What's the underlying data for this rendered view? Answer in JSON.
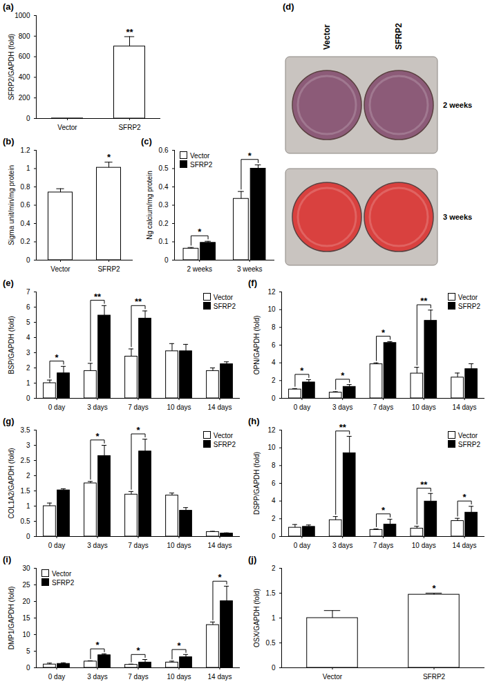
{
  "chart_data": [
    {
      "type": "bar",
      "title": "(a)",
      "y_label": "SFRP2/GAPDH (fold)",
      "categories": [
        "Vector",
        "SFRP2"
      ],
      "values": [
        1,
        700
      ],
      "errors": [
        0,
        95
      ],
      "colors": [
        "#ffffff",
        "#ffffff"
      ],
      "significance": [
        null,
        "**"
      ],
      "ylim": [
        0,
        1000
      ],
      "yticks": [
        0,
        200,
        400,
        600,
        800,
        1000
      ]
    },
    {
      "type": "bar",
      "title": "(b)",
      "y_label": "Sigma unit/min/mg protein",
      "categories": [
        "Vector",
        "SFRP2"
      ],
      "values": [
        0.74,
        1.01
      ],
      "errors": [
        0.04,
        0.06
      ],
      "colors": [
        "#ffffff",
        "#ffffff"
      ],
      "significance": [
        null,
        "*"
      ],
      "ylim": [
        0,
        1.2
      ],
      "yticks": [
        0,
        0.2,
        0.4,
        0.6,
        0.8,
        1,
        1.2
      ]
    },
    {
      "type": "bar",
      "title": "(c)",
      "y_label": "Ng calcium/mg protein",
      "categories": [
        "2 weeks",
        "3 weeks"
      ],
      "legend": "top-left",
      "series": [
        {
          "name": "Vector",
          "color": "#ffffff",
          "values": [
            0.063,
            0.335
          ],
          "errors": [
            0.006,
            0.04
          ]
        },
        {
          "name": "SFRP2",
          "color": "#000000",
          "values": [
            0.095,
            0.5
          ],
          "errors": [
            0.008,
            0.02
          ]
        }
      ],
      "significance": [
        "*",
        "*"
      ],
      "ylim": [
        0,
        0.6
      ],
      "yticks": [
        0,
        0.1,
        0.2,
        0.3,
        0.4,
        0.5,
        0.6
      ]
    },
    {
      "type": "image",
      "title": "(d)",
      "columns": [
        "Vector",
        "SFRP2"
      ],
      "rows": [
        "2 weeks",
        "3 weeks"
      ],
      "colors": [
        "#8c5b78",
        "#d9413f"
      ]
    },
    {
      "type": "bar",
      "title": "(e)",
      "y_label": "BSP/GAPDH (fold)",
      "categories": [
        "0 day",
        "3 days",
        "7 days",
        "10 days",
        "14 days"
      ],
      "legend": "top-right",
      "series": [
        {
          "name": "Vector",
          "color": "#ffffff",
          "values": [
            1.0,
            1.8,
            2.75,
            3.1,
            1.8
          ],
          "errors": [
            0.2,
            0.5,
            0.5,
            0.5,
            0.2
          ]
        },
        {
          "name": "SFRP2",
          "color": "#000000",
          "values": [
            1.65,
            5.45,
            5.25,
            3.1,
            2.25
          ],
          "errors": [
            0.45,
            0.65,
            0.5,
            0.45,
            0.15
          ]
        }
      ],
      "significance": [
        "*",
        "**",
        "**",
        null,
        null
      ],
      "ylim": [
        0,
        7
      ],
      "yticks": [
        0,
        1,
        2,
        3,
        4,
        5,
        6,
        7
      ]
    },
    {
      "type": "bar",
      "title": "(f)",
      "y_label": "OPN/GAPDH (fold)",
      "categories": [
        "0 day",
        "3 days",
        "7 days",
        "10 days",
        "14 days"
      ],
      "legend": "top-right",
      "series": [
        {
          "name": "Vector",
          "color": "#ffffff",
          "values": [
            1.0,
            0.65,
            3.85,
            2.8,
            2.35
          ],
          "errors": [
            0.1,
            0.1,
            0.15,
            0.7,
            0.5
          ]
        },
        {
          "name": "SFRP2",
          "color": "#000000",
          "values": [
            1.8,
            1.3,
            6.25,
            8.75,
            3.3
          ],
          "errors": [
            0.3,
            0.25,
            0.15,
            1.2,
            0.6
          ]
        }
      ],
      "significance": [
        "*",
        "*",
        "*",
        "**",
        null
      ],
      "ylim": [
        0,
        12
      ],
      "yticks": [
        0,
        2,
        4,
        6,
        8,
        10,
        12
      ]
    },
    {
      "type": "bar",
      "title": "(g)",
      "y_label": "COL1A2/GAPDH (fold)",
      "categories": [
        "0 day",
        "3 days",
        "7 days",
        "10 days",
        "14 days"
      ],
      "legend": "top-right",
      "series": [
        {
          "name": "Vector",
          "color": "#ffffff",
          "values": [
            1.0,
            1.75,
            1.38,
            1.35,
            0.15
          ],
          "errors": [
            0.1,
            0.06,
            0.1,
            0.08,
            0.02
          ]
        },
        {
          "name": "SFRP2",
          "color": "#000000",
          "values": [
            1.52,
            2.65,
            2.8,
            0.85,
            0.1
          ],
          "errors": [
            0.05,
            0.35,
            0.4,
            0.1,
            0.02
          ]
        }
      ],
      "significance": [
        null,
        "*",
        "*",
        null,
        null
      ],
      "ylim": [
        0,
        3.5
      ],
      "yticks": [
        0,
        0.5,
        1,
        1.5,
        2,
        2.5,
        3,
        3.5
      ]
    },
    {
      "type": "bar",
      "title": "(h)",
      "y_label": "DSPP/GAPDH (fold)",
      "categories": [
        "0 day",
        "3 days",
        "7 days",
        "10 days",
        "14 days"
      ],
      "legend": "top-right",
      "series": [
        {
          "name": "Vector",
          "color": "#ffffff",
          "values": [
            1.0,
            1.85,
            0.75,
            0.9,
            1.75
          ],
          "errors": [
            0.35,
            0.4,
            0.1,
            0.25,
            0.3
          ]
        },
        {
          "name": "SFRP2",
          "color": "#000000",
          "values": [
            1.1,
            9.4,
            1.35,
            3.95,
            2.7
          ],
          "errors": [
            0.2,
            1.9,
            0.6,
            0.9,
            0.7
          ]
        }
      ],
      "significance": [
        null,
        "**",
        "*",
        "**",
        "*"
      ],
      "ylim": [
        0,
        12
      ],
      "yticks": [
        0,
        2,
        4,
        6,
        8,
        10,
        12
      ]
    },
    {
      "type": "bar",
      "title": "(i)",
      "y_label": "DMP1/GAPDH (fold)",
      "categories": [
        "0 day",
        "3 days",
        "7 days",
        "10 days",
        "14 days"
      ],
      "legend": "top-left",
      "series": [
        {
          "name": "Vector",
          "color": "#ffffff",
          "values": [
            1.0,
            1.9,
            0.9,
            1.6,
            12.9
          ],
          "errors": [
            0.4,
            0.2,
            0.2,
            0.4,
            0.9
          ]
        },
        {
          "name": "SFRP2",
          "color": "#000000",
          "values": [
            1.2,
            3.8,
            1.6,
            3.2,
            20.1
          ],
          "errors": [
            0.3,
            0.4,
            0.9,
            0.8,
            4.5
          ]
        }
      ],
      "significance": [
        null,
        "*",
        "*",
        "*",
        "*"
      ],
      "ylim": [
        0,
        30
      ],
      "yticks": [
        0,
        5,
        10,
        15,
        20,
        25,
        30
      ]
    },
    {
      "type": "bar",
      "title": "(j)",
      "y_label": "OSX/GAPDH (fold)",
      "categories": [
        "Vector",
        "SFRP2"
      ],
      "values": [
        1.0,
        1.47
      ],
      "errors": [
        0.15,
        0.03
      ],
      "colors": [
        "#ffffff",
        "#ffffff"
      ],
      "significance": [
        null,
        "*"
      ],
      "ylim": [
        0,
        2
      ],
      "yticks": [
        0,
        0.5,
        1,
        1.5,
        2
      ]
    }
  ]
}
